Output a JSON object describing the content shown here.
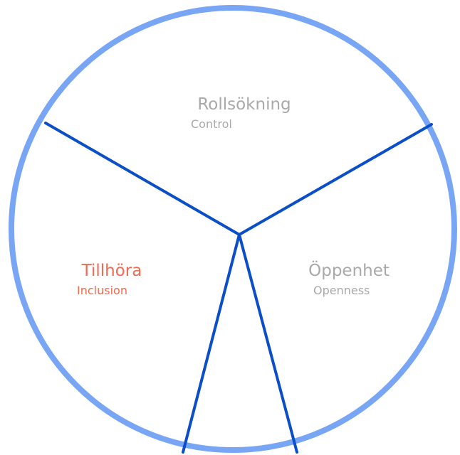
{
  "nodes": [
    {
      "label": "Rollsökning",
      "sublabel": "Control"
    },
    {
      "label": "Tillhöra",
      "sublabel": "Inclusion"
    },
    {
      "label": "Öppenhet",
      "sublabel": "Openness"
    }
  ]
}
